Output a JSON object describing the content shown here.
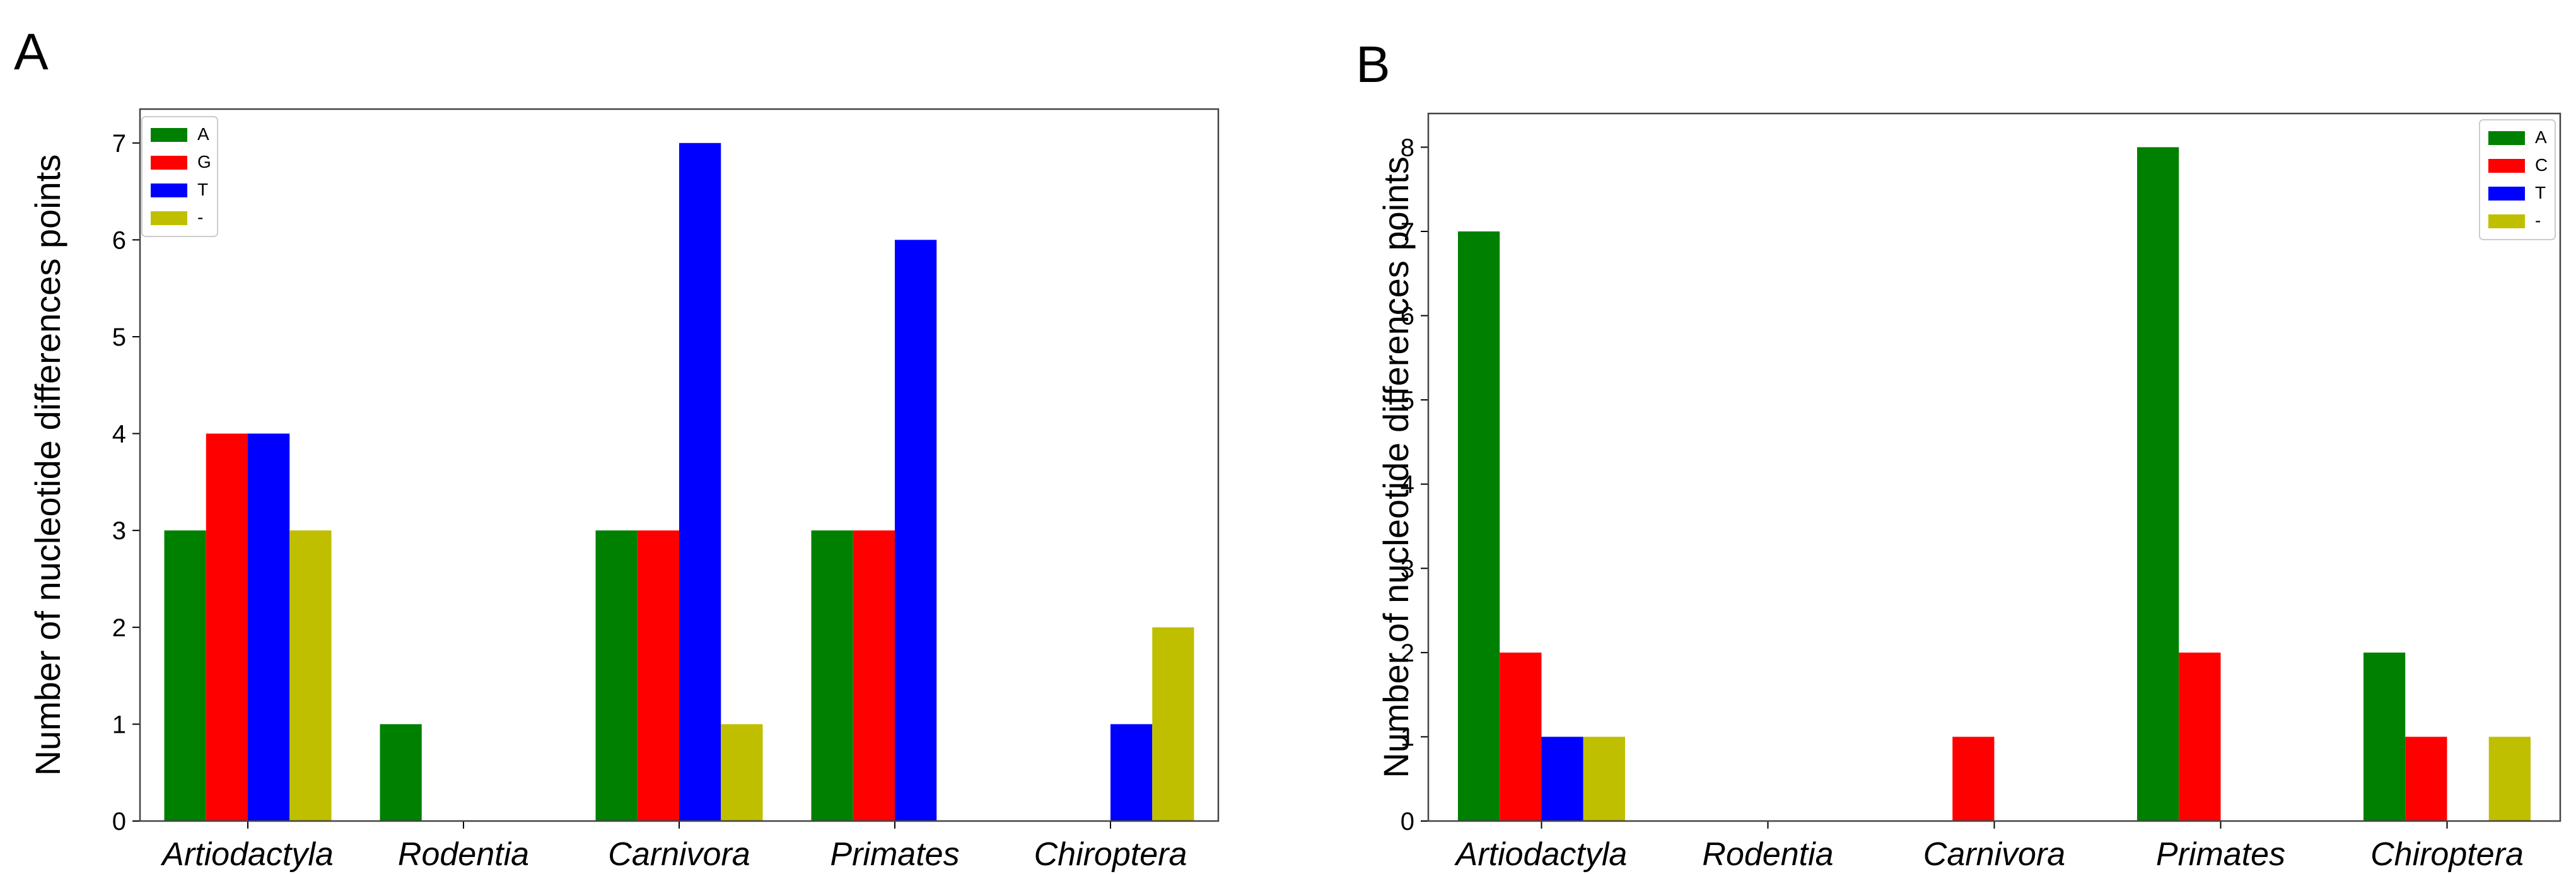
{
  "figure": {
    "colors": {
      "A": "#008000",
      "G": "#ff0000",
      "C": "#ff0000",
      "T": "#0000ff",
      "-": "#bfbf00"
    }
  },
  "chart_data": [
    {
      "panel_label": "A",
      "type": "bar",
      "title": "",
      "xlabel": "",
      "ylabel": "Number of nucleotide differences points",
      "categories": [
        "Artiodactyla",
        "Rodentia",
        "Carnivora",
        "Primates",
        "Chiroptera"
      ],
      "yticks": [
        "0",
        "1",
        "2",
        "3",
        "4",
        "5",
        "6",
        "7"
      ],
      "ylim": [
        0,
        7.35
      ],
      "legend_position": "top-left",
      "series": [
        {
          "name": "A",
          "color": "#008000",
          "values": [
            3,
            1,
            3,
            3,
            0
          ]
        },
        {
          "name": "G",
          "color": "#ff0000",
          "values": [
            4,
            0,
            3,
            3,
            0
          ]
        },
        {
          "name": "T",
          "color": "#0000ff",
          "values": [
            4,
            0,
            7,
            6,
            1
          ]
        },
        {
          "name": "-",
          "color": "#bfbf00",
          "values": [
            3,
            0,
            1,
            0,
            2
          ]
        }
      ]
    },
    {
      "panel_label": "B",
      "type": "bar",
      "title": "",
      "xlabel": "",
      "ylabel": "Number of nucleotide differences points",
      "categories": [
        "Artiodactyla",
        "Rodentia",
        "Carnivora",
        "Primates",
        "Chiroptera"
      ],
      "yticks": [
        "0",
        "1",
        "2",
        "3",
        "4",
        "5",
        "6",
        "7",
        "8"
      ],
      "ylim": [
        0,
        8.4
      ],
      "legend_position": "top-right",
      "series": [
        {
          "name": "A",
          "color": "#008000",
          "values": [
            7,
            0,
            0,
            8,
            2
          ]
        },
        {
          "name": "C",
          "color": "#ff0000",
          "values": [
            2,
            0,
            1,
            2,
            1
          ]
        },
        {
          "name": "T",
          "color": "#0000ff",
          "values": [
            1,
            0,
            0,
            0,
            0
          ]
        },
        {
          "name": "-",
          "color": "#bfbf00",
          "values": [
            1,
            0,
            0,
            0,
            1
          ]
        }
      ]
    }
  ]
}
